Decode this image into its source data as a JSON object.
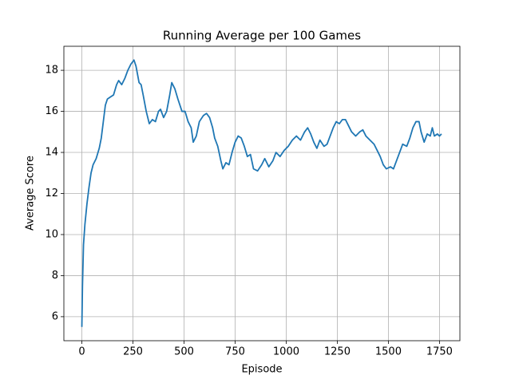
{
  "chart_data": {
    "type": "line",
    "title": "Running Average per 100 Games",
    "xlabel": "Episode",
    "ylabel": "Average Score",
    "x": [
      0,
      3,
      8,
      15,
      25,
      35,
      45,
      55,
      70,
      85,
      95,
      105,
      115,
      125,
      140,
      155,
      170,
      180,
      195,
      210,
      225,
      240,
      255,
      265,
      280,
      290,
      300,
      315,
      330,
      345,
      360,
      375,
      385,
      400,
      415,
      430,
      440,
      455,
      470,
      490,
      505,
      520,
      535,
      545,
      560,
      575,
      595,
      610,
      625,
      640,
      650,
      665,
      680,
      690,
      705,
      720,
      735,
      750,
      765,
      780,
      795,
      810,
      825,
      840,
      860,
      880,
      895,
      915,
      935,
      950,
      970,
      990,
      1010,
      1030,
      1050,
      1070,
      1090,
      1105,
      1120,
      1135,
      1150,
      1165,
      1185,
      1200,
      1215,
      1230,
      1245,
      1260,
      1275,
      1290,
      1305,
      1320,
      1340,
      1360,
      1375,
      1390,
      1410,
      1430,
      1445,
      1460,
      1475,
      1490,
      1510,
      1525,
      1540,
      1555,
      1570,
      1590,
      1605,
      1620,
      1635,
      1650,
      1660,
      1675,
      1690,
      1705,
      1715,
      1725,
      1740,
      1750,
      1760
    ],
    "values": [
      5.5,
      7.5,
      9.5,
      10.5,
      11.5,
      12.3,
      13.0,
      13.4,
      13.7,
      14.2,
      14.7,
      15.5,
      16.3,
      16.6,
      16.7,
      16.8,
      17.3,
      17.5,
      17.3,
      17.6,
      18.0,
      18.3,
      18.5,
      18.2,
      17.4,
      17.3,
      16.8,
      16.0,
      15.4,
      15.6,
      15.5,
      16.0,
      16.1,
      15.7,
      16.0,
      16.8,
      17.4,
      17.1,
      16.6,
      16.0,
      16.0,
      15.5,
      15.2,
      14.5,
      14.8,
      15.5,
      15.8,
      15.9,
      15.7,
      15.2,
      14.7,
      14.3,
      13.6,
      13.2,
      13.5,
      13.4,
      14.0,
      14.5,
      14.8,
      14.7,
      14.3,
      13.8,
      13.9,
      13.2,
      13.1,
      13.4,
      13.7,
      13.3,
      13.6,
      14.0,
      13.8,
      14.1,
      14.3,
      14.6,
      14.8,
      14.6,
      15.0,
      15.2,
      14.9,
      14.5,
      14.2,
      14.6,
      14.3,
      14.4,
      14.8,
      15.2,
      15.5,
      15.4,
      15.6,
      15.6,
      15.3,
      15.0,
      14.8,
      15.0,
      15.1,
      14.8,
      14.6,
      14.4,
      14.1,
      13.8,
      13.4,
      13.2,
      13.3,
      13.2,
      13.6,
      14.0,
      14.4,
      14.3,
      14.7,
      15.2,
      15.5,
      15.5,
      15.0,
      14.5,
      14.9,
      14.8,
      15.2,
      14.8,
      14.9,
      14.8,
      14.9
    ],
    "color": "#1f77b4",
    "xlim": [
      -88,
      1850
    ],
    "xticks": [
      0,
      250,
      500,
      750,
      1000,
      1250,
      1500,
      1750
    ],
    "ylim": [
      4.83,
      19.17
    ],
    "yticks": [
      6,
      8,
      10,
      12,
      14,
      16,
      18
    ],
    "grid": true
  }
}
